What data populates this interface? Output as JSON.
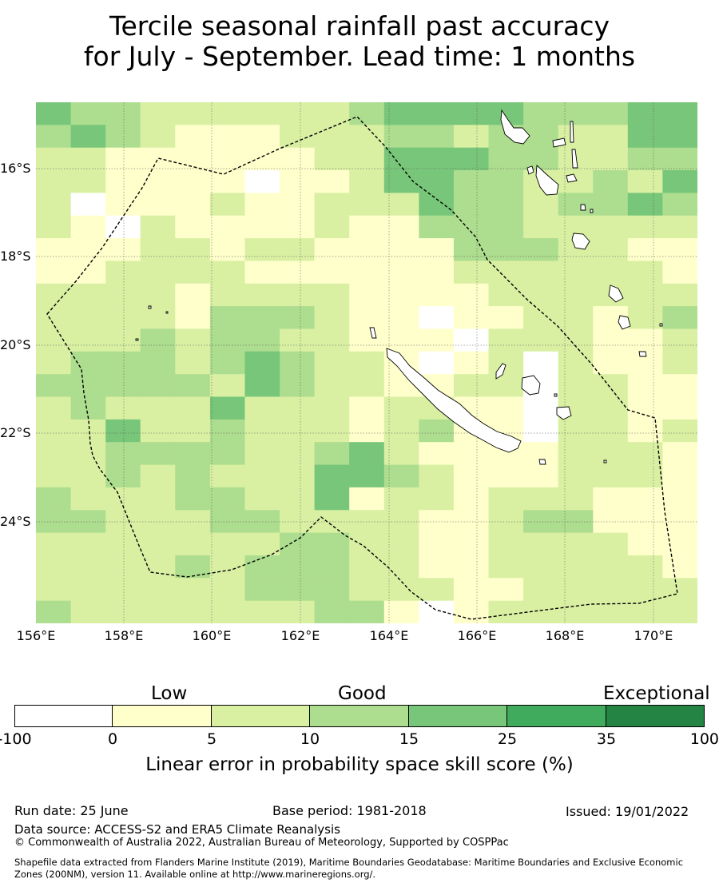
{
  "title": {
    "line1": "Tercile seasonal rainfall past accuracy",
    "line2": "for July - September. Lead time: 1 months"
  },
  "map": {
    "lat_labels": [
      "16°S",
      "18°S",
      "20°S",
      "22°S",
      "24°S"
    ],
    "lon_labels": [
      "156°E",
      "158°E",
      "160°E",
      "162°E",
      "164°E",
      "166°E",
      "168°E",
      "170°E"
    ],
    "colors": [
      "#ffffff",
      "#ffffcc",
      "#d9f0a3",
      "#addd8e",
      "#78c679",
      "#41ab5d",
      "#238443"
    ],
    "grid": [
      "4332222223444433344",
      "3432111222332332244",
      "2211111122444332233",
      "2211110112443322324",
      "2011121122243323343",
      "2102111121133322222",
      "1112212211113332211",
      "1122221111112222221",
      "2222122221111222222",
      "2222133321101122123",
      "2223233221110222112",
      "2333234322101202112",
      "3333324322112202211",
      "2322242221221102211",
      "2242232221231102212",
      "2233332234211112221",
      "2232322244321112221",
      "3222332241221222111",
      "3322233222211233111",
      "2222222332211222211",
      "2222323332211222221",
      "2222223332221122222",
      "3222222233101222222"
    ]
  },
  "colorbar": {
    "categories": [
      "Low",
      "Good",
      "Exceptional"
    ],
    "ticks": [
      "-100",
      "0",
      "5",
      "10",
      "15",
      "25",
      "35",
      "100"
    ],
    "title": "Linear error in probability space skill score (%)"
  },
  "footer": {
    "run_date": "Run date: 25 June",
    "base_period": "Base period: 1981-2018",
    "issued": "Issued: 19/01/2022",
    "data_source": "Data source: ACCESS-S2 and ERA5 Climate Reanalysis",
    "copyright": "© Commonwealth of Australia 2022, Australian Bureau of Meteorology, Supported by COSPPac",
    "shapefile_line1": "Shapefile data extracted from Flanders Marine Institute (2019), Maritime Boundaries Geodatabase: Maritime Boundaries and Exclusive Economic",
    "shapefile_line2": "Zones (200NM), version 11. Available online at http://www.marineregions.org/."
  }
}
